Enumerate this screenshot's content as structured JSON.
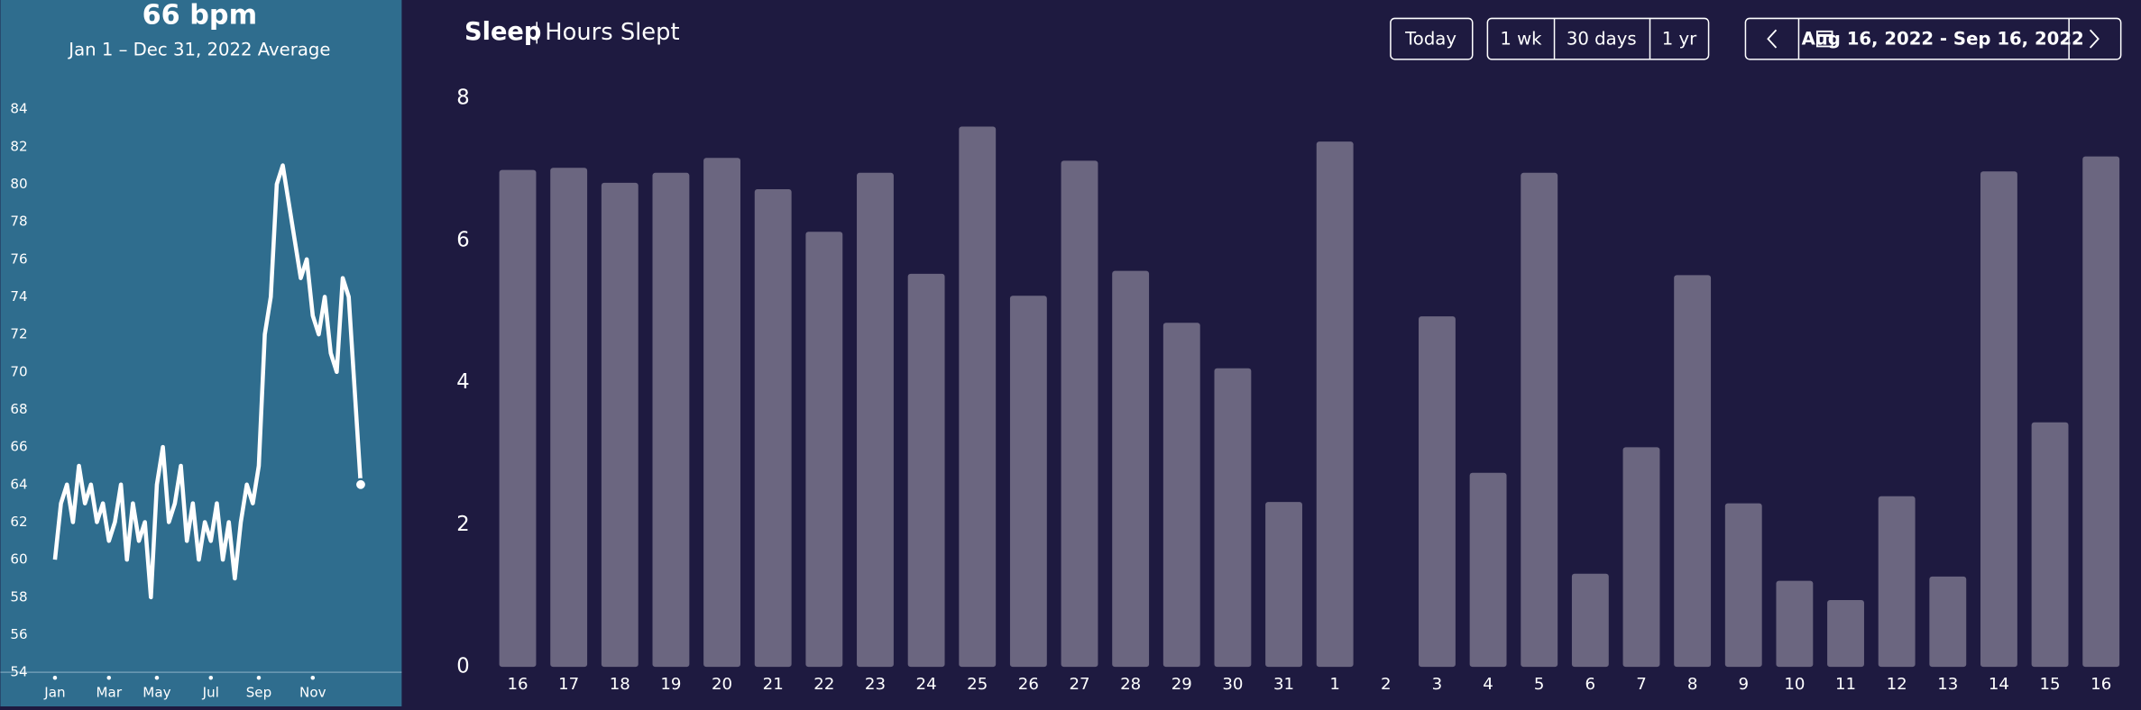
{
  "chart_data": [
    {
      "type": "line",
      "title": "66 bpm",
      "subtitle": "Jan 1 – Dec 31, 2022 Average",
      "color": "#ffffff",
      "categories": [
        "Jan",
        null,
        null,
        null,
        null,
        null,
        null,
        null,
        null,
        "Mar",
        null,
        null,
        null,
        null,
        null,
        null,
        null,
        "May",
        null,
        null,
        null,
        null,
        null,
        null,
        null,
        null,
        "Jul",
        null,
        null,
        null,
        null,
        null,
        null,
        null,
        "Sep",
        null,
        null,
        null,
        null,
        null,
        null,
        null,
        null,
        "Nov",
        null,
        null,
        null,
        null,
        null,
        null,
        null,
        null
      ],
      "values": [
        60,
        63,
        64,
        62,
        65,
        63,
        64,
        62,
        63,
        61,
        62,
        64,
        60,
        63,
        61,
        62,
        58,
        64,
        66,
        62,
        63,
        65,
        61,
        63,
        60,
        62,
        61,
        63,
        60,
        62,
        59,
        62,
        64,
        63,
        65,
        72,
        74,
        80,
        81,
        79,
        77,
        75,
        76,
        73,
        72,
        74,
        71,
        70,
        75,
        74,
        69,
        64
      ],
      "ylim": [
        54,
        84
      ],
      "yticks": [
        54,
        56,
        58,
        60,
        62,
        64,
        66,
        68,
        70,
        72,
        74,
        76,
        78,
        80,
        82,
        84
      ]
    },
    {
      "type": "bar",
      "title": "Sleep",
      "subtitle": "Hours Slept",
      "color": "#6b6680",
      "categories": [
        "16",
        "17",
        "18",
        "19",
        "20",
        "21",
        "22",
        "23",
        "24",
        "25",
        "26",
        "27",
        "28",
        "29",
        "30",
        "31",
        "1",
        "2",
        "3",
        "4",
        "5",
        "6",
        "7",
        "8",
        "9",
        "10",
        "11",
        "12",
        "13",
        "14",
        "15",
        "16"
      ],
      "values": [
        6.99,
        7.02,
        6.81,
        6.95,
        7.16,
        6.72,
        6.12,
        6.95,
        5.53,
        7.6,
        5.22,
        7.12,
        5.57,
        4.84,
        4.2,
        2.32,
        7.39,
        0,
        4.93,
        2.73,
        6.95,
        1.31,
        3.09,
        5.51,
        2.3,
        1.21,
        0.94,
        2.4,
        1.27,
        6.97,
        3.44,
        7.18
      ],
      "ylim": [
        0,
        8
      ],
      "yticks": [
        0,
        2,
        4,
        6,
        8
      ]
    }
  ],
  "controls": {
    "today": "Today",
    "ranges": [
      "1 wk",
      "30 days",
      "1 yr"
    ],
    "date_range": "Aug 16, 2022 - Sep 16, 2022"
  }
}
